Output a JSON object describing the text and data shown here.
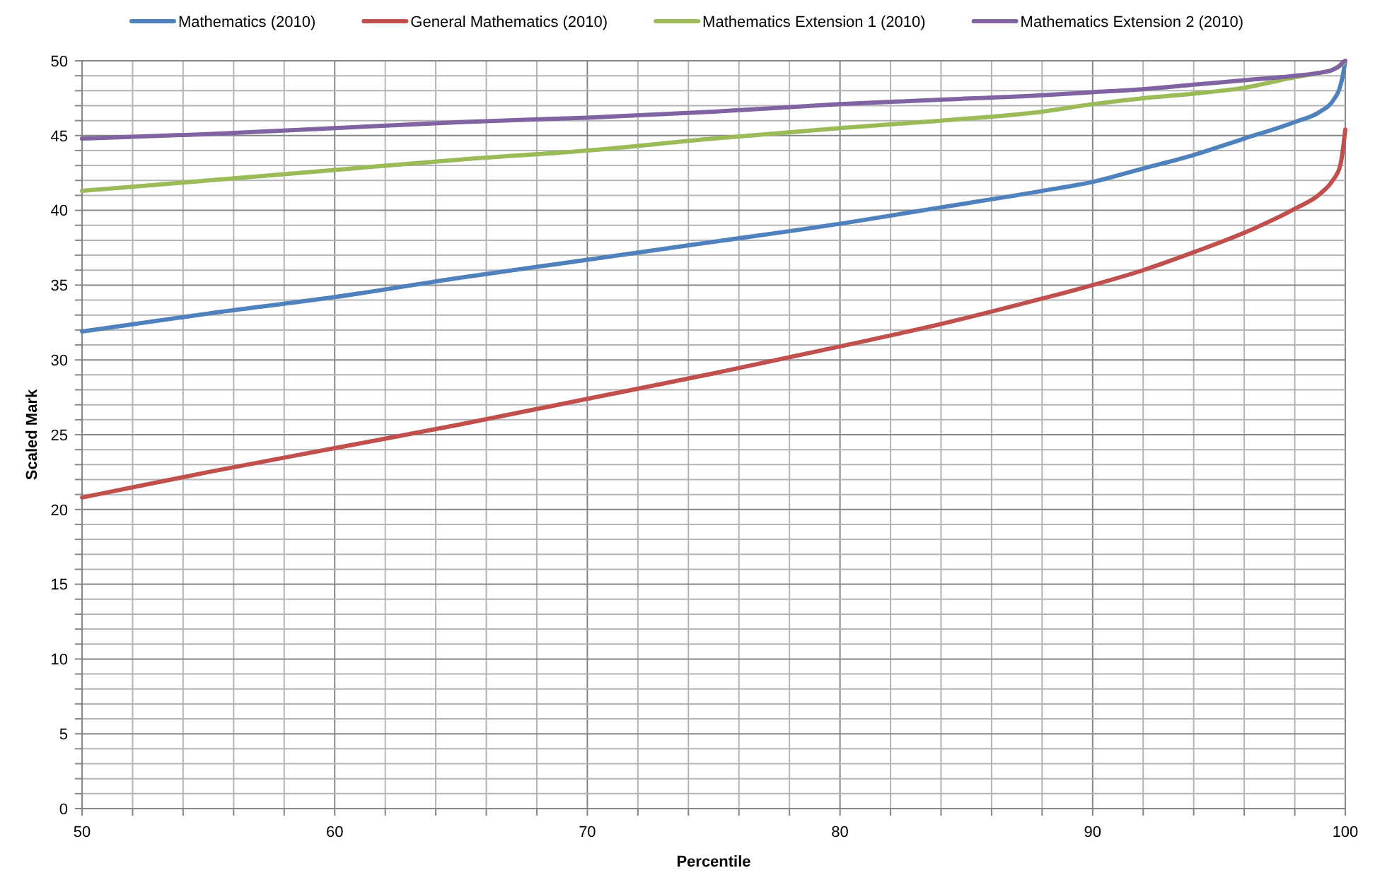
{
  "chart_data": {
    "type": "line",
    "xlabel": "Percentile",
    "ylabel": "Scaled Mark",
    "x": [
      50,
      55,
      60,
      65,
      70,
      75,
      80,
      84,
      88,
      90,
      92,
      94,
      96,
      98,
      99,
      99.5,
      99.8,
      99.9,
      100
    ],
    "series": [
      {
        "name": "Mathematics (2010)",
        "color": "#4f81bd",
        "values": [
          31.9,
          33.1,
          34.2,
          35.5,
          36.7,
          37.9,
          39.1,
          40.2,
          41.3,
          41.9,
          42.8,
          43.7,
          44.8,
          45.9,
          46.6,
          47.3,
          48.3,
          49.0,
          50
        ]
      },
      {
        "name": "General Mathematics (2010)",
        "color": "#c0504d",
        "values": [
          20.8,
          22.5,
          24.1,
          25.7,
          27.4,
          29.1,
          30.9,
          32.4,
          34.1,
          35.0,
          36.0,
          37.2,
          38.5,
          40.1,
          41.1,
          42.0,
          43.0,
          44.0,
          45.4
        ]
      },
      {
        "name": "Mathematics Extension 1 (2010)",
        "color": "#9bbb59",
        "values": [
          41.3,
          42.0,
          42.7,
          43.4,
          44.0,
          44.8,
          45.5,
          46.0,
          46.6,
          47.1,
          47.5,
          47.8,
          48.2,
          48.9,
          49.2,
          49.4,
          49.7,
          49.8,
          50
        ]
      },
      {
        "name": "Mathematics Extension 2 (2010)",
        "color": "#8064a2",
        "values": [
          44.8,
          45.1,
          45.5,
          45.9,
          46.2,
          46.6,
          47.1,
          47.4,
          47.7,
          47.9,
          48.1,
          48.4,
          48.7,
          49.0,
          49.2,
          49.4,
          49.7,
          49.9,
          50
        ]
      }
    ],
    "xlim": [
      50,
      100
    ],
    "xticks": [
      50,
      {
        "value": 52,
        "label": null
      },
      {
        "value": 54,
        "label": null
      },
      {
        "value": 56,
        "label": null
      },
      {
        "value": 58,
        "label": null
      },
      60,
      {
        "value": 62,
        "label": null
      },
      {
        "value": 64,
        "label": null
      },
      {
        "value": 66,
        "label": null
      },
      {
        "value": 68,
        "label": null
      },
      70,
      {
        "value": 72,
        "label": null
      },
      {
        "value": 74,
        "label": null
      },
      {
        "value": 76,
        "label": null
      },
      {
        "value": 78,
        "label": null
      },
      80,
      {
        "value": 82,
        "label": null
      },
      {
        "value": 84,
        "label": null
      },
      {
        "value": 86,
        "label": null
      },
      {
        "value": 88,
        "label": null
      },
      90,
      {
        "value": 92,
        "label": null
      },
      {
        "value": 94,
        "label": null
      },
      {
        "value": 96,
        "label": null
      },
      {
        "value": 98,
        "label": null
      },
      100
    ],
    "ylim": [
      0,
      50
    ],
    "yticks": [
      0,
      {
        "value": 1,
        "label": null
      },
      {
        "value": 2,
        "label": null
      },
      {
        "value": 3,
        "label": null
      },
      {
        "value": 4,
        "label": null
      },
      5,
      {
        "value": 6,
        "label": null
      },
      {
        "value": 7,
        "label": null
      },
      {
        "value": 8,
        "label": null
      },
      {
        "value": 9,
        "label": null
      },
      10,
      {
        "value": 11,
        "label": null
      },
      {
        "value": 12,
        "label": null
      },
      {
        "value": 13,
        "label": null
      },
      {
        "value": 14,
        "label": null
      },
      15,
      {
        "value": 16,
        "label": null
      },
      {
        "value": 17,
        "label": null
      },
      {
        "value": 18,
        "label": null
      },
      {
        "value": 19,
        "label": null
      },
      20,
      {
        "value": 21,
        "label": null
      },
      {
        "value": 22,
        "label": null
      },
      {
        "value": 23,
        "label": null
      },
      {
        "value": 24,
        "label": null
      },
      25,
      {
        "value": 26,
        "label": null
      },
      {
        "value": 27,
        "label": null
      },
      {
        "value": 28,
        "label": null
      },
      {
        "value": 29,
        "label": null
      },
      30,
      {
        "value": 31,
        "label": null
      },
      {
        "value": 32,
        "label": null
      },
      {
        "value": 33,
        "label": null
      },
      {
        "value": 34,
        "label": null
      },
      35,
      {
        "value": 36,
        "label": null
      },
      {
        "value": 37,
        "label": null
      },
      {
        "value": 38,
        "label": null
      },
      {
        "value": 39,
        "label": null
      },
      40,
      {
        "value": 41,
        "label": null
      },
      {
        "value": 42,
        "label": null
      },
      {
        "value": 43,
        "label": null
      },
      {
        "value": 44,
        "label": null
      },
      45,
      {
        "value": 46,
        "label": null
      },
      {
        "value": 47,
        "label": null
      },
      {
        "value": 48,
        "label": null
      },
      {
        "value": 49,
        "label": null
      },
      50
    ],
    "grid": true,
    "legend": "top"
  }
}
